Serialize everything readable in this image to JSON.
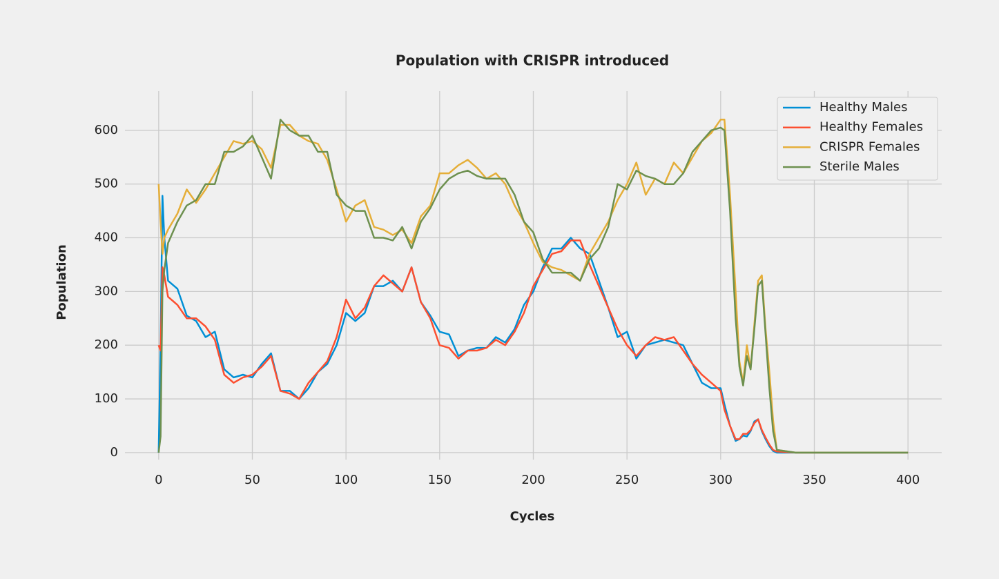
{
  "chart_data": {
    "type": "line",
    "title": "Population with CRISPR introduced",
    "xlabel": "Cycles",
    "ylabel": "Population",
    "x": [
      0,
      1,
      2,
      3,
      5,
      10,
      15,
      20,
      25,
      30,
      35,
      40,
      45,
      50,
      55,
      60,
      65,
      70,
      75,
      80,
      85,
      90,
      95,
      100,
      105,
      110,
      115,
      120,
      125,
      130,
      135,
      140,
      145,
      150,
      155,
      160,
      165,
      170,
      175,
      180,
      185,
      190,
      195,
      200,
      205,
      210,
      215,
      220,
      225,
      230,
      235,
      240,
      245,
      250,
      255,
      260,
      265,
      270,
      275,
      280,
      285,
      290,
      295,
      300,
      302,
      305,
      308,
      310,
      312,
      314,
      316,
      318,
      320,
      322,
      324,
      326,
      328,
      330,
      340,
      350,
      360,
      370,
      380,
      390,
      400
    ],
    "series": [
      {
        "name": "Healthy Males",
        "color": "#008fd5",
        "values": [
          0,
          200,
          478,
          400,
          320,
          305,
          255,
          245,
          215,
          225,
          155,
          140,
          145,
          140,
          165,
          185,
          115,
          115,
          100,
          120,
          150,
          165,
          200,
          260,
          245,
          260,
          310,
          310,
          320,
          300,
          345,
          280,
          255,
          225,
          220,
          180,
          190,
          195,
          195,
          215,
          205,
          230,
          275,
          300,
          345,
          380,
          380,
          400,
          380,
          370,
          320,
          270,
          215,
          225,
          175,
          200,
          205,
          210,
          205,
          200,
          165,
          130,
          120,
          120,
          90,
          50,
          22,
          25,
          32,
          30,
          40,
          58,
          62,
          40,
          25,
          12,
          3,
          0,
          0,
          0,
          0,
          0,
          0,
          0,
          0
        ]
      },
      {
        "name": "Healthy Females",
        "color": "#fc4f30",
        "values": [
          200,
          190,
          345,
          330,
          290,
          275,
          250,
          250,
          235,
          210,
          145,
          130,
          140,
          145,
          160,
          180,
          115,
          110,
          100,
          130,
          150,
          170,
          215,
          285,
          250,
          270,
          310,
          330,
          315,
          300,
          345,
          280,
          250,
          200,
          195,
          175,
          190,
          190,
          195,
          210,
          200,
          225,
          260,
          310,
          340,
          370,
          375,
          395,
          395,
          350,
          310,
          270,
          230,
          200,
          180,
          200,
          215,
          210,
          215,
          190,
          165,
          145,
          130,
          115,
          80,
          50,
          25,
          25,
          35,
          35,
          42,
          55,
          62,
          42,
          28,
          15,
          5,
          2,
          0,
          0,
          0,
          0,
          0,
          0,
          0
        ]
      },
      {
        "name": "CRISPR Females",
        "color": "#e5ae38",
        "values": [
          500,
          430,
          370,
          400,
          415,
          445,
          490,
          465,
          490,
          520,
          550,
          580,
          575,
          580,
          565,
          530,
          610,
          610,
          590,
          580,
          575,
          545,
          490,
          430,
          460,
          470,
          420,
          415,
          405,
          415,
          390,
          440,
          460,
          520,
          520,
          535,
          545,
          530,
          510,
          520,
          500,
          460,
          430,
          390,
          355,
          345,
          340,
          330,
          320,
          370,
          400,
          430,
          470,
          500,
          540,
          480,
          510,
          500,
          540,
          520,
          550,
          580,
          595,
          620,
          620,
          480,
          300,
          170,
          130,
          200,
          155,
          240,
          320,
          330,
          230,
          150,
          60,
          5,
          0,
          0,
          0,
          0,
          0,
          0,
          0
        ]
      },
      {
        "name": "Sterile Males",
        "color": "#6d904f",
        "values": [
          0,
          30,
          300,
          340,
          390,
          430,
          460,
          470,
          500,
          500,
          560,
          560,
          570,
          590,
          550,
          510,
          620,
          600,
          590,
          590,
          560,
          560,
          480,
          460,
          450,
          450,
          400,
          400,
          395,
          420,
          380,
          430,
          455,
          490,
          510,
          520,
          525,
          515,
          510,
          510,
          510,
          480,
          430,
          410,
          360,
          335,
          335,
          335,
          320,
          360,
          380,
          420,
          500,
          490,
          525,
          515,
          510,
          500,
          500,
          520,
          560,
          580,
          600,
          605,
          600,
          450,
          250,
          160,
          125,
          180,
          155,
          230,
          310,
          320,
          220,
          120,
          40,
          5,
          0,
          0,
          0,
          0,
          0,
          0,
          0
        ]
      }
    ],
    "xlim": [
      -18,
      418
    ],
    "ylim": [
      -13,
      673
    ],
    "xticks": [
      0,
      50,
      100,
      150,
      200,
      250,
      300,
      350,
      400
    ],
    "yticks": [
      0,
      100,
      200,
      300,
      400,
      500,
      600
    ],
    "grid": true,
    "legend": "upper right"
  }
}
